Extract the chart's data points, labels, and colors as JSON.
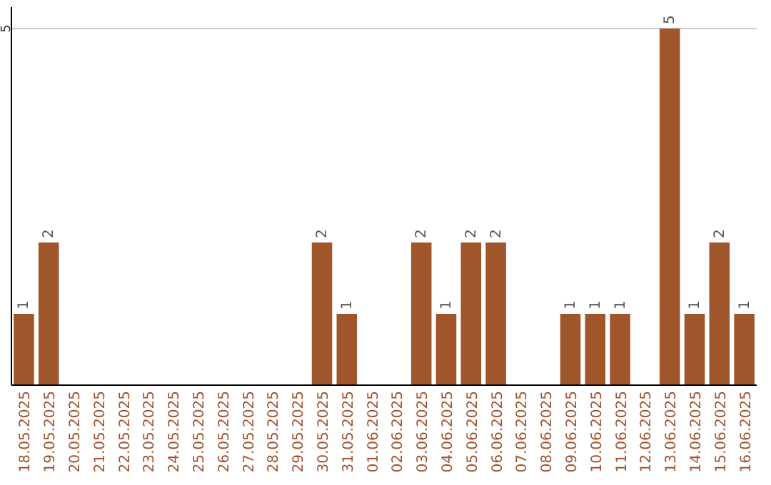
{
  "chart_data": {
    "type": "bar",
    "categories": [
      "18.05.2025",
      "19.05.2025",
      "20.05.2025",
      "21.05.2025",
      "22.05.2025",
      "23.05.2025",
      "24.05.2025",
      "25.05.2025",
      "26.05.2025",
      "27.05.2025",
      "28.05.2025",
      "29.05.2025",
      "30.05.2025",
      "31.05.2025",
      "01.06.2025",
      "02.06.2025",
      "03.06.2025",
      "04.06.2025",
      "05.06.2025",
      "06.06.2025",
      "07.06.2025",
      "08.06.2025",
      "09.06.2025",
      "10.06.2025",
      "11.06.2025",
      "12.06.2025",
      "13.06.2025",
      "14.06.2025",
      "15.06.2025",
      "16.06.2025"
    ],
    "values": [
      1,
      2,
      0,
      0,
      0,
      0,
      0,
      0,
      0,
      0,
      0,
      0,
      2,
      1,
      0,
      0,
      2,
      1,
      2,
      2,
      0,
      0,
      1,
      1,
      1,
      0,
      5,
      1,
      2,
      1
    ],
    "value_labels": [
      "1",
      "2",
      null,
      null,
      null,
      null,
      null,
      null,
      null,
      null,
      null,
      null,
      "2",
      "1",
      null,
      null,
      "2",
      "1",
      "2",
      "2",
      null,
      null,
      "1",
      "1",
      "1",
      null,
      "5",
      "1",
      "2",
      "1"
    ],
    "color": "#a0562b",
    "ylim": [
      0,
      5.3
    ],
    "yticks": [
      5
    ],
    "grid": "y"
  }
}
